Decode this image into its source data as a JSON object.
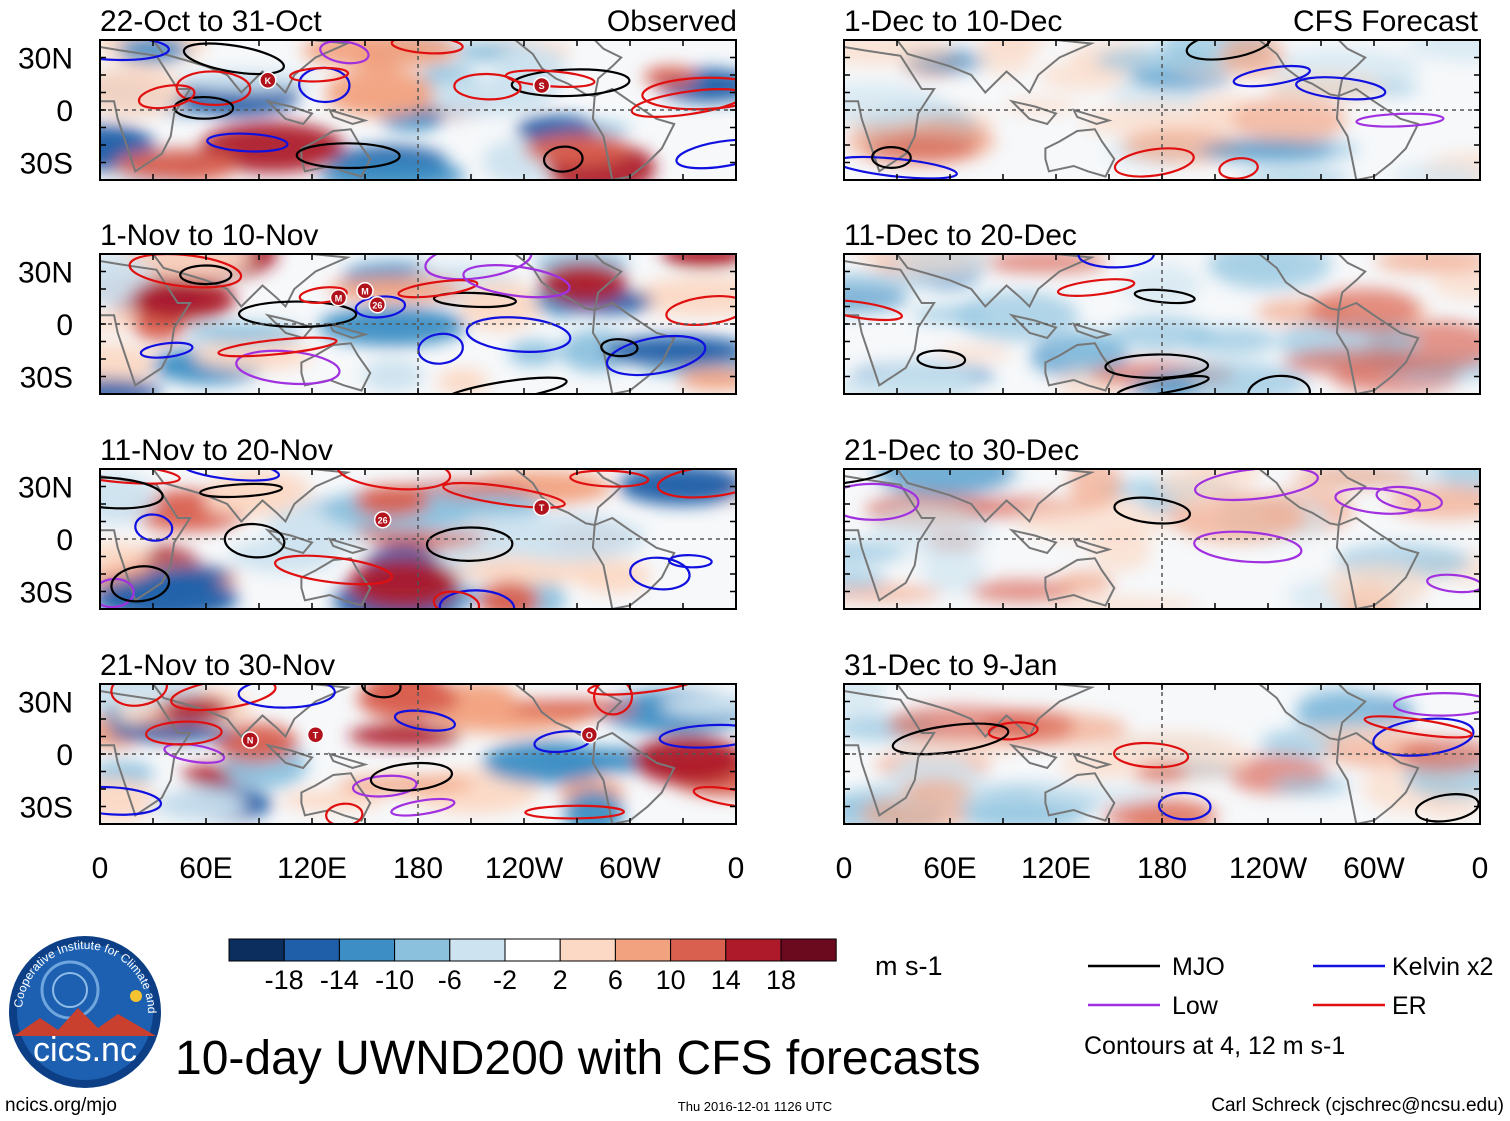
{
  "title": "10-day UWND200 with CFS forecasts",
  "left_header_right": "Observed",
  "right_header_right": "CFS Forecast",
  "units": "m s-1",
  "contour_note": "Contours at 4, 12 m s-1",
  "logo_text": "cics.nc",
  "logo_ring_text": "Cooperative Institute for Climate and Satellites",
  "footer_left": "ncics.org/mjo",
  "footer_center": "Thu 2016-12-01 1126 UTC",
  "footer_right": "Carl Schreck (cjschrec@ncsu.edu)",
  "colors": {
    "fill_scale": [
      "#0b2e5e",
      "#1f5ea8",
      "#3c8ec4",
      "#8cc1de",
      "#cde3ef",
      "#ffffff",
      "#fcd9c5",
      "#f2a27f",
      "#d9604f",
      "#ae1a2a",
      "#6b0a1e"
    ],
    "mjo": "#000000",
    "kelvin": "#1010e0",
    "low": "#a030e0",
    "er": "#e01010"
  },
  "chart_data": {
    "type": "heatmap",
    "variable": "200-hPa zonal wind anomaly (10-day mean)",
    "x_ticks": [
      "0",
      "60E",
      "120E",
      "180",
      "120W",
      "60W",
      "0"
    ],
    "y_ticks": [
      "30N",
      "0",
      "30S"
    ],
    "colorbar_levels": [
      "-18",
      "-14",
      "-10",
      "-6",
      "-2",
      "2",
      "6",
      "10",
      "14",
      "18"
    ],
    "legend": [
      {
        "key": "mjo",
        "label": "MJO"
      },
      {
        "key": "kelvin",
        "label": "Kelvin x2"
      },
      {
        "key": "low",
        "label": "Low"
      },
      {
        "key": "er",
        "label": "ER"
      }
    ],
    "panels": [
      {
        "id": "p1",
        "column": "Observed",
        "title": "22-Oct to 31-Oct",
        "storms": [
          {
            "label": "K",
            "lon": 95,
            "lat": 17
          },
          {
            "label": "S",
            "lon": 250,
            "lat": 14
          }
        ]
      },
      {
        "id": "p2",
        "column": "Observed",
        "title": "1-Nov to 10-Nov",
        "storms": [
          {
            "label": "M",
            "lon": 135,
            "lat": 15
          },
          {
            "label": "M",
            "lon": 150,
            "lat": 19
          },
          {
            "label": "26",
            "lon": 157,
            "lat": 11
          }
        ]
      },
      {
        "id": "p3",
        "column": "Observed",
        "title": "11-Nov to 20-Nov",
        "storms": [
          {
            "label": "26",
            "lon": 160,
            "lat": 11
          },
          {
            "label": "T",
            "lon": 250,
            "lat": 18
          }
        ]
      },
      {
        "id": "p4",
        "column": "Observed",
        "title": "21-Nov to 30-Nov",
        "storms": [
          {
            "label": "N",
            "lon": 85,
            "lat": 8
          },
          {
            "label": "T",
            "lon": 122,
            "lat": 11
          },
          {
            "label": "O",
            "lon": 277,
            "lat": 11
          }
        ]
      },
      {
        "id": "p5",
        "column": "CFS Forecast",
        "title": "1-Dec to 10-Dec",
        "storms": []
      },
      {
        "id": "p6",
        "column": "CFS Forecast",
        "title": "11-Dec to 20-Dec",
        "storms": []
      },
      {
        "id": "p7",
        "column": "CFS Forecast",
        "title": "21-Dec to 30-Dec",
        "storms": []
      },
      {
        "id": "p8",
        "column": "CFS Forecast",
        "title": "31-Dec to 9-Jan",
        "storms": []
      }
    ]
  }
}
